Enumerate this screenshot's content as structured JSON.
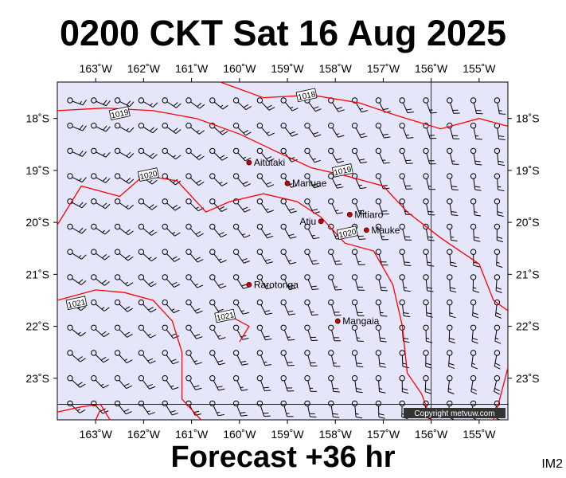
{
  "header": {
    "title": "0200 CKT Sat 16 Aug 2025"
  },
  "footer": {
    "forecast": "Forecast +36 hr",
    "code": "IM2"
  },
  "map": {
    "lon_range": [
      -163.8,
      -154.4
    ],
    "lat_range": [
      -23.8,
      -17.3
    ],
    "background": "#e6e6fa",
    "isobar_color": "#ff0000",
    "top_axis_labels": [
      {
        "lon": -163,
        "text": "163˚W"
      },
      {
        "lon": -162,
        "text": "162˚W"
      },
      {
        "lon": -161,
        "text": "161˚W"
      },
      {
        "lon": -160,
        "text": "160˚W"
      },
      {
        "lon": -159,
        "text": "159˚W"
      },
      {
        "lon": -158,
        "text": "158˚W"
      },
      {
        "lon": -157,
        "text": "157˚W"
      },
      {
        "lon": -156,
        "text": "156˚W"
      },
      {
        "lon": -155,
        "text": "155˚W"
      }
    ],
    "bottom_axis_labels": [
      {
        "lon": -163,
        "text": "163˚W"
      },
      {
        "lon": -162,
        "text": "162˚W"
      },
      {
        "lon": -161,
        "text": "161˚W"
      },
      {
        "lon": -160,
        "text": "160˚W"
      },
      {
        "lon": -159,
        "text": "159˚W"
      },
      {
        "lon": -158,
        "text": "158˚W"
      },
      {
        "lon": -157,
        "text": "157˚W"
      },
      {
        "lon": -156,
        "text": "156˚W"
      },
      {
        "lon": -155,
        "text": "155˚W"
      }
    ],
    "left_axis_labels": [
      {
        "lat": -18,
        "text": "18˚S"
      },
      {
        "lat": -19,
        "text": "19˚S"
      },
      {
        "lat": -20,
        "text": "20˚S"
      },
      {
        "lat": -21,
        "text": "21˚S"
      },
      {
        "lat": -22,
        "text": "22˚S"
      },
      {
        "lat": -23,
        "text": "23˚S"
      }
    ],
    "right_axis_labels": [
      {
        "lat": -18,
        "text": "18˚S"
      },
      {
        "lat": -19,
        "text": "19˚S"
      },
      {
        "lat": -20,
        "text": "20˚S"
      },
      {
        "lat": -21,
        "text": "21˚S"
      },
      {
        "lat": -22,
        "text": "22˚S"
      },
      {
        "lat": -23,
        "text": "23˚S"
      }
    ],
    "towns": [
      {
        "name": "Aitutaki",
        "lon": -159.8,
        "lat": -18.85,
        "side": "right"
      },
      {
        "name": "Manuae",
        "lon": -159.0,
        "lat": -19.25,
        "side": "right"
      },
      {
        "name": "Mitiaro",
        "lon": -157.7,
        "lat": -19.85,
        "side": "right"
      },
      {
        "name": "Atiu",
        "lon": -158.3,
        "lat": -19.98,
        "side": "left"
      },
      {
        "name": "Mauke",
        "lon": -157.35,
        "lat": -20.15,
        "side": "right"
      },
      {
        "name": "Rarotonga",
        "lon": -159.8,
        "lat": -21.2,
        "side": "right"
      },
      {
        "name": "Mangaia",
        "lon": -157.95,
        "lat": -21.9,
        "side": "right"
      }
    ],
    "isobar_labels": [
      {
        "text": "1018",
        "lon": -158.6,
        "lat": -17.55
      },
      {
        "text": "1019",
        "lon": -162.5,
        "lat": -17.9
      },
      {
        "text": "1019",
        "lon": -157.85,
        "lat": -19.0
      },
      {
        "text": "1020",
        "lon": -161.9,
        "lat": -19.08
      },
      {
        "text": "1020",
        "lon": -157.75,
        "lat": -20.2
      },
      {
        "text": "1021",
        "lon": -163.4,
        "lat": -21.55
      },
      {
        "text": "1021",
        "lon": -160.3,
        "lat": -21.8
      }
    ],
    "isobars": [
      [
        [
          -160.4,
          -17.3
        ],
        [
          -159.5,
          -17.6
        ],
        [
          -158.5,
          -17.55
        ],
        [
          -157.5,
          -17.7
        ],
        [
          -156.7,
          -17.95
        ],
        [
          -155.8,
          -18.2
        ],
        [
          -155,
          -18.0
        ],
        [
          -154.4,
          -18.15
        ]
      ],
      [
        [
          -163.8,
          -17.85
        ],
        [
          -162.8,
          -17.8
        ],
        [
          -161.8,
          -17.85
        ],
        [
          -160.9,
          -18.0
        ],
        [
          -160,
          -18.3
        ],
        [
          -159.2,
          -18.65
        ],
        [
          -158.5,
          -18.95
        ],
        [
          -157.8,
          -19.1
        ],
        [
          -157.0,
          -19.3
        ],
        [
          -156.5,
          -19.8
        ],
        [
          -155.8,
          -20.3
        ],
        [
          -155.0,
          -20.8
        ],
        [
          -154.7,
          -21.5
        ],
        [
          -154.4,
          -21.7
        ]
      ],
      [
        [
          -163.8,
          -20.05
        ],
        [
          -163.3,
          -19.3
        ],
        [
          -162.5,
          -19.5
        ],
        [
          -162.0,
          -19.1
        ],
        [
          -161.3,
          -19.2
        ],
        [
          -160.7,
          -19.8
        ],
        [
          -160.2,
          -19.6
        ],
        [
          -159.5,
          -19.45
        ],
        [
          -158.8,
          -19.6
        ],
        [
          -158.3,
          -19.9
        ],
        [
          -157.8,
          -20.4
        ],
        [
          -157.2,
          -20.55
        ],
        [
          -156.8,
          -21.2
        ],
        [
          -156.6,
          -22.0
        ],
        [
          -156.5,
          -22.9
        ],
        [
          -156.2,
          -23.3
        ],
        [
          -156.0,
          -23.8
        ]
      ],
      [
        [
          -163.8,
          -21.5
        ],
        [
          -163.0,
          -21.3
        ],
        [
          -162.4,
          -21.35
        ],
        [
          -161.8,
          -21.5
        ],
        [
          -161.4,
          -21.9
        ],
        [
          -161.2,
          -22.5
        ],
        [
          -161.2,
          -23.4
        ],
        [
          -160.8,
          -23.8
        ]
      ],
      [
        [
          -160.3,
          -21.75
        ],
        [
          -160.0,
          -21.9
        ],
        [
          -159.8,
          -22.0
        ],
        [
          -160.0,
          -22.3
        ]
      ],
      [
        [
          -163.8,
          -23.65
        ],
        [
          -163.3,
          -23.55
        ],
        [
          -162.9,
          -23.5
        ],
        [
          -162.7,
          -23.8
        ]
      ],
      [
        [
          -154.4,
          -22.8
        ],
        [
          -154.6,
          -23.5
        ],
        [
          -154.7,
          -23.8
        ]
      ],
      [
        [
          -163.0,
          -23.8
        ],
        [
          -162.9,
          -23.6
        ]
      ]
    ],
    "copyright": "Copyright metvuw.com"
  }
}
